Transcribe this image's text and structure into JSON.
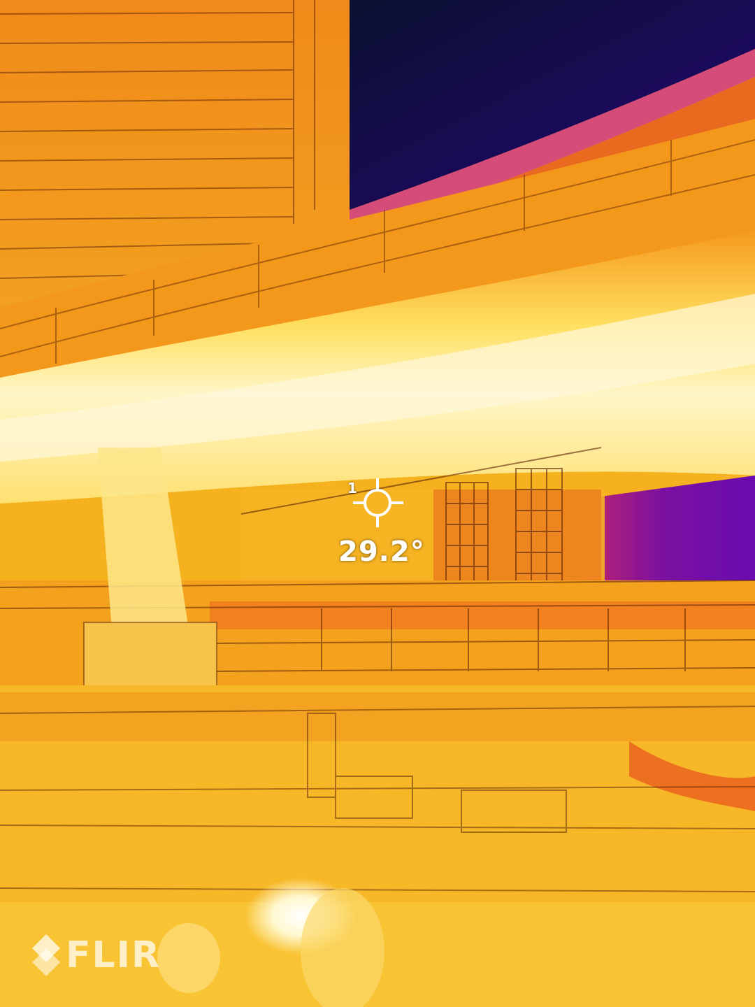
{
  "spot": {
    "marker_index": "1",
    "temperature": "29.2°"
  },
  "brand": {
    "logo_text": "FLIR",
    "icon": "flir-diamond-icon"
  },
  "palette": {
    "cold": "#1e0660",
    "mid": "#e8501e",
    "warm": "#f6b21e",
    "hot": "#fff3a8"
  }
}
